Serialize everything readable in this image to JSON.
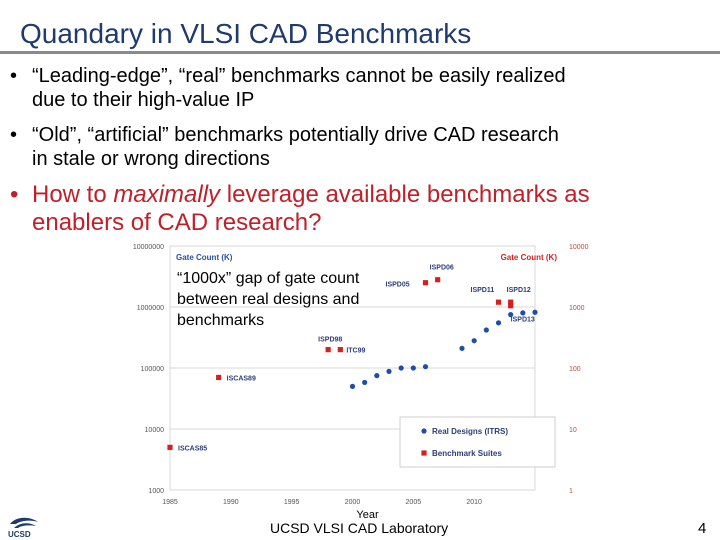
{
  "slide": {
    "title": "Quandary in VLSI CAD Benchmarks",
    "bullets": [
      {
        "line1": "“Leading-edge”, “real” benchmarks cannot be easily realized",
        "line2": "due to their high-value IP"
      },
      {
        "line1": "“Old”, “artificial” benchmarks potentially drive CAD research",
        "line2": "in stale or wrong directions"
      }
    ],
    "red_bullet": {
      "pre": "How to ",
      "em": "maximally",
      "post": " leverage available benchmarks as",
      "line2": "enablers of CAD research?"
    },
    "annotation": [
      "“1000x” gap of gate count",
      "between real designs and",
      "benchmarks"
    ],
    "footer": "UCSD VLSI CAD Laboratory",
    "page_number": "4",
    "logo_text": "UCSD",
    "bullet_glyph": "•"
  },
  "chart_data": {
    "type": "scatter",
    "left_axis_title": "Gate Count (K)",
    "right_axis_title": "Gate Count (K)",
    "xlabel": "Year",
    "xticks": [
      "1985",
      "1990",
      "1995",
      "2000",
      "2005",
      "2010"
    ],
    "left_ticks": [
      "10000000",
      "1000000",
      "100000",
      "10000",
      "1000"
    ],
    "right_ticks": [
      "10000",
      "1000",
      "100",
      "10",
      "1"
    ],
    "xlim": [
      1985,
      2015
    ],
    "ylim_left": [
      1000,
      10000000
    ],
    "ylim_right": [
      1,
      10000
    ],
    "scale": "log",
    "colors": {
      "real": "#1f4ea8",
      "bench": "#d62020",
      "label": "#2a4fa8"
    },
    "series": [
      {
        "name": "Real Designs (ITRS)",
        "axis": "left",
        "points": [
          [
            2000,
            50000
          ],
          [
            2001,
            58000
          ],
          [
            2002,
            75000
          ],
          [
            2003,
            88000
          ],
          [
            2004,
            100000
          ],
          [
            2005,
            100000
          ],
          [
            2006,
            105000
          ],
          [
            2009,
            210000
          ],
          [
            2010,
            280000
          ],
          [
            2011,
            420000
          ],
          [
            2012,
            550000
          ],
          [
            2013,
            750000
          ],
          [
            2014,
            800000
          ],
          [
            2015,
            820000
          ]
        ]
      },
      {
        "name": "Benchmark Suites",
        "axis": "left",
        "points": [
          {
            "x": 1985,
            "y": 5000,
            "label": "ISCAS85"
          },
          {
            "x": 1989,
            "y": 70000,
            "label": "ISCAS89"
          },
          {
            "x": 1998,
            "y": 200000,
            "label": "ISPD98"
          },
          {
            "x": 1999,
            "y": 200000,
            "label": "ITC99"
          },
          {
            "x": 2006,
            "y": 2500000,
            "label": "ISPD05"
          },
          {
            "x": 2007,
            "y": 2800000,
            "label": "ISPD06"
          },
          {
            "x": 2012,
            "y": 1200000,
            "label": "ISPD11"
          },
          {
            "x": 2013,
            "y": 1200000,
            "label": "ISPD12"
          },
          {
            "x": 2013,
            "y": 1050000,
            "label": "ISPD13"
          }
        ]
      }
    ],
    "legend": {
      "position": "bottom-right",
      "items": [
        "Real Designs (ITRS)",
        "Benchmark Suites"
      ]
    }
  }
}
